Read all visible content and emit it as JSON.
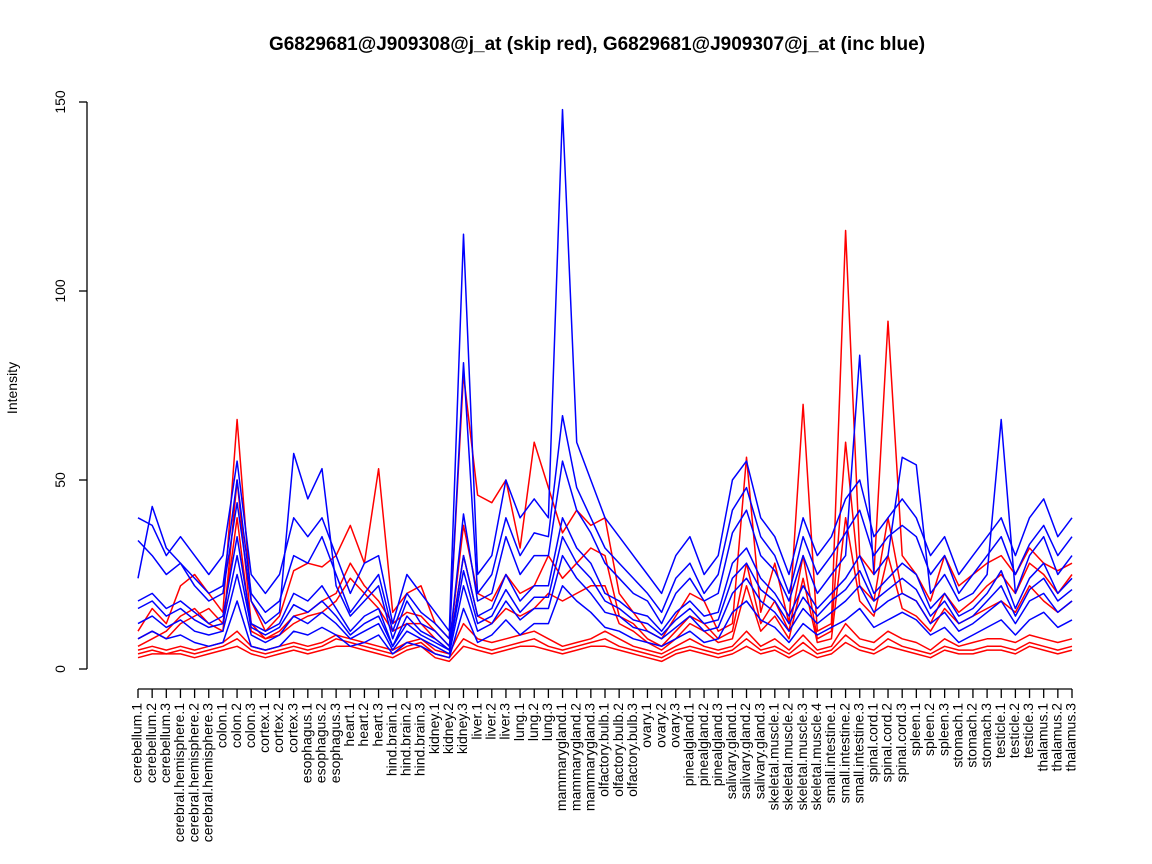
{
  "chart_data": {
    "type": "line",
    "title": "G6829681@J909308@j_at (skip red), G6829681@J909307@j_at (inc blue)",
    "xlabel": "",
    "ylabel": "Intensity",
    "ylim": [
      0,
      150
    ],
    "yticks": [
      0,
      50,
      100,
      150
    ],
    "grid": false,
    "legend": "none",
    "colors": {
      "skip": "#ff0000",
      "inc": "#0000ff"
    },
    "categories": [
      "cerebellum.1",
      "cerebellum.2",
      "cerebellum.3",
      "cerebral.hemisphere.1",
      "cerebral.hemisphere.2",
      "cerebral.hemisphere.3",
      "colon.1",
      "colon.2",
      "colon.3",
      "cortex.1",
      "cortex.2",
      "cortex.3",
      "esophagus.1",
      "esophagus.2",
      "esophagus.3",
      "heart.1",
      "heart.2",
      "heart.3",
      "hind.brain.1",
      "hind.brain.2",
      "hind.brain.3",
      "kidney.1",
      "kidney.2",
      "kidney.3",
      "liver.1",
      "liver.2",
      "liver.3",
      "lung.1",
      "lung.2",
      "lung.3",
      "mammarygland.1",
      "mammarygland.2",
      "mammarygland.3",
      "olfactory.bulb.1",
      "olfactory.bulb.2",
      "olfactory.bulb.3",
      "ovary.1",
      "ovary.2",
      "ovary.3",
      "pinealgland.1",
      "pinealgland.2",
      "pinealgland.3",
      "salivary.gland.1",
      "salivary.gland.2",
      "salivary.gland.3",
      "skeletal.muscle.1",
      "skeletal.muscle.2",
      "skeletal.muscle.3",
      "skeletal.muscle.4",
      "small.intestine.1",
      "small.intestine.2",
      "small.intestine.3",
      "spinal.cord.1",
      "spinal.cord.2",
      "spinal.cord.3",
      "spleen.1",
      "spleen.2",
      "spleen.3",
      "stomach.1",
      "stomach.2",
      "stomach.3",
      "testicle.1",
      "testicle.2",
      "testicle.3",
      "thalamus.1",
      "thalamus.2",
      "thalamus.3"
    ],
    "series": [
      {
        "group": "skip",
        "values": [
          10,
          16,
          12,
          22,
          25,
          20,
          15,
          66,
          18,
          10,
          14,
          26,
          28,
          27,
          30,
          38,
          28,
          53,
          15,
          20,
          22,
          12,
          8,
          78,
          46,
          44,
          50,
          32,
          60,
          48,
          36,
          42,
          38,
          40,
          20,
          15,
          10,
          8,
          14,
          20,
          18,
          10,
          12,
          56,
          15,
          28,
          12,
          70,
          10,
          12,
          116,
          30,
          25,
          92,
          30,
          25,
          18,
          30,
          22,
          25,
          28,
          30,
          25,
          32,
          28,
          26,
          28
        ]
      },
      {
        "group": "skip",
        "values": [
          6,
          8,
          10,
          14,
          16,
          12,
          10,
          50,
          12,
          8,
          10,
          14,
          15,
          18,
          20,
          28,
          22,
          18,
          12,
          15,
          14,
          10,
          6,
          38,
          20,
          18,
          25,
          20,
          22,
          30,
          24,
          28,
          32,
          30,
          14,
          12,
          8,
          6,
          10,
          14,
          12,
          8,
          10,
          28,
          12,
          18,
          10,
          30,
          8,
          10,
          60,
          22,
          18,
          40,
          20,
          18,
          12,
          20,
          15,
          18,
          22,
          25,
          20,
          28,
          25,
          20,
          25
        ]
      },
      {
        "group": "skip",
        "values": [
          4,
          5,
          4,
          5,
          4,
          5,
          6,
          8,
          5,
          4,
          5,
          6,
          5,
          6,
          8,
          7,
          6,
          5,
          4,
          6,
          7,
          4,
          3,
          8,
          6,
          5,
          6,
          7,
          8,
          6,
          5,
          6,
          7,
          8,
          6,
          5,
          4,
          3,
          5,
          6,
          5,
          4,
          5,
          8,
          5,
          6,
          4,
          7,
          4,
          5,
          9,
          6,
          5,
          8,
          6,
          5,
          4,
          6,
          5,
          5,
          6,
          6,
          5,
          7,
          6,
          5,
          6
        ]
      },
      {
        "group": "skip",
        "values": [
          3,
          4,
          4,
          4,
          3,
          4,
          5,
          6,
          4,
          3,
          4,
          5,
          4,
          5,
          6,
          6,
          5,
          4,
          3,
          5,
          6,
          3,
          2,
          6,
          5,
          4,
          5,
          6,
          6,
          5,
          4,
          5,
          6,
          6,
          5,
          4,
          3,
          2,
          4,
          5,
          4,
          3,
          4,
          6,
          4,
          5,
          3,
          5,
          3,
          4,
          7,
          5,
          4,
          6,
          5,
          4,
          3,
          5,
          4,
          4,
          5,
          5,
          4,
          6,
          5,
          4,
          5
        ]
      },
      {
        "group": "skip",
        "values": [
          5,
          6,
          5,
          6,
          5,
          6,
          7,
          10,
          6,
          5,
          6,
          7,
          6,
          7,
          9,
          8,
          7,
          6,
          5,
          7,
          8,
          5,
          4,
          12,
          8,
          7,
          8,
          9,
          10,
          8,
          6,
          7,
          8,
          10,
          8,
          6,
          5,
          4,
          6,
          8,
          6,
          5,
          6,
          10,
          6,
          8,
          5,
          9,
          5,
          6,
          12,
          8,
          7,
          10,
          8,
          7,
          5,
          8,
          6,
          7,
          8,
          8,
          7,
          9,
          8,
          7,
          8
        ]
      },
      {
        "group": "skip",
        "values": [
          8,
          10,
          8,
          12,
          14,
          16,
          12,
          40,
          10,
          8,
          9,
          12,
          14,
          15,
          18,
          24,
          20,
          16,
          10,
          12,
          12,
          8,
          5,
          30,
          14,
          12,
          16,
          14,
          16,
          20,
          18,
          20,
          22,
          22,
          12,
          10,
          7,
          5,
          8,
          12,
          10,
          7,
          8,
          22,
          10,
          14,
          8,
          24,
          7,
          8,
          40,
          18,
          14,
          30,
          16,
          14,
          10,
          16,
          12,
          14,
          16,
          18,
          15,
          22,
          18,
          15,
          18
        ]
      },
      {
        "group": "inc",
        "values": [
          40,
          38,
          30,
          35,
          30,
          25,
          30,
          55,
          25,
          20,
          25,
          40,
          35,
          40,
          30,
          20,
          28,
          30,
          12,
          25,
          20,
          15,
          10,
          115,
          25,
          30,
          50,
          40,
          45,
          40,
          148,
          60,
          50,
          40,
          35,
          30,
          25,
          20,
          30,
          35,
          25,
          30,
          50,
          55,
          40,
          35,
          25,
          40,
          30,
          35,
          45,
          50,
          35,
          40,
          45,
          40,
          30,
          35,
          25,
          30,
          35,
          40,
          30,
          40,
          45,
          35,
          40
        ]
      },
      {
        "group": "inc",
        "values": [
          34,
          30,
          25,
          28,
          24,
          20,
          22,
          50,
          20,
          15,
          18,
          30,
          28,
          35,
          25,
          15,
          20,
          25,
          10,
          20,
          15,
          12,
          8,
          81,
          20,
          25,
          40,
          30,
          36,
          35,
          67,
          48,
          40,
          32,
          28,
          24,
          20,
          15,
          24,
          28,
          20,
          25,
          42,
          48,
          35,
          30,
          20,
          35,
          25,
          30,
          36,
          42,
          30,
          35,
          38,
          35,
          25,
          30,
          20,
          25,
          30,
          35,
          25,
          33,
          38,
          30,
          35
        ]
      },
      {
        "group": "inc",
        "values": [
          24,
          43,
          32,
          28,
          22,
          18,
          20,
          44,
          18,
          12,
          15,
          57,
          45,
          53,
          22,
          14,
          18,
          22,
          8,
          18,
          12,
          10,
          6,
          41,
          18,
          20,
          35,
          25,
          30,
          30,
          55,
          42,
          36,
          28,
          24,
          20,
          18,
          12,
          20,
          24,
          18,
          20,
          36,
          42,
          30,
          26,
          18,
          30,
          20,
          25,
          30,
          83,
          25,
          30,
          56,
          54,
          20,
          25,
          18,
          20,
          25,
          66,
          20,
          30,
          35,
          25,
          30
        ]
      },
      {
        "group": "inc",
        "values": [
          18,
          20,
          16,
          18,
          15,
          12,
          14,
          35,
          12,
          10,
          12,
          20,
          18,
          22,
          16,
          10,
          14,
          16,
          6,
          14,
          10,
          8,
          5,
          30,
          14,
          16,
          25,
          18,
          22,
          22,
          40,
          32,
          28,
          20,
          18,
          15,
          14,
          10,
          15,
          18,
          14,
          15,
          28,
          32,
          24,
          20,
          14,
          22,
          16,
          20,
          24,
          30,
          20,
          24,
          28,
          25,
          16,
          20,
          14,
          16,
          20,
          26,
          16,
          24,
          28,
          20,
          24
        ]
      },
      {
        "group": "inc",
        "values": [
          12,
          14,
          11,
          13,
          10,
          9,
          10,
          25,
          9,
          7,
          9,
          14,
          12,
          15,
          12,
          8,
          10,
          12,
          5,
          10,
          8,
          6,
          4,
          22,
          10,
          12,
          18,
          13,
          16,
          16,
          30,
          24,
          20,
          15,
          14,
          11,
          10,
          8,
          11,
          14,
          10,
          11,
          20,
          24,
          18,
          15,
          10,
          16,
          12,
          15,
          18,
          22,
          15,
          18,
          20,
          18,
          12,
          15,
          10,
          12,
          15,
          18,
          12,
          18,
          20,
          15,
          18
        ]
      },
      {
        "group": "inc",
        "values": [
          16,
          18,
          14,
          16,
          13,
          11,
          12,
          30,
          11,
          9,
          11,
          17,
          15,
          18,
          14,
          9,
          12,
          14,
          6,
          12,
          9,
          7,
          5,
          26,
          12,
          14,
          21,
          15,
          19,
          19,
          35,
          28,
          24,
          18,
          16,
          13,
          12,
          9,
          13,
          16,
          12,
          13,
          24,
          28,
          21,
          18,
          12,
          19,
          14,
          18,
          21,
          26,
          18,
          21,
          24,
          21,
          14,
          18,
          12,
          14,
          18,
          22,
          14,
          21,
          24,
          18,
          21
        ]
      },
      {
        "group": "inc",
        "values": [
          8,
          10,
          8,
          9,
          7,
          6,
          7,
          18,
          6,
          5,
          6,
          10,
          9,
          11,
          9,
          6,
          7,
          9,
          4,
          7,
          6,
          4,
          3,
          16,
          7,
          9,
          13,
          9,
          12,
          12,
          22,
          18,
          15,
          11,
          10,
          8,
          7,
          6,
          8,
          10,
          7,
          8,
          15,
          18,
          13,
          11,
          7,
          12,
          9,
          11,
          13,
          16,
          11,
          13,
          15,
          13,
          9,
          11,
          7,
          9,
          11,
          13,
          9,
          13,
          15,
          11,
          13
        ]
      }
    ]
  }
}
